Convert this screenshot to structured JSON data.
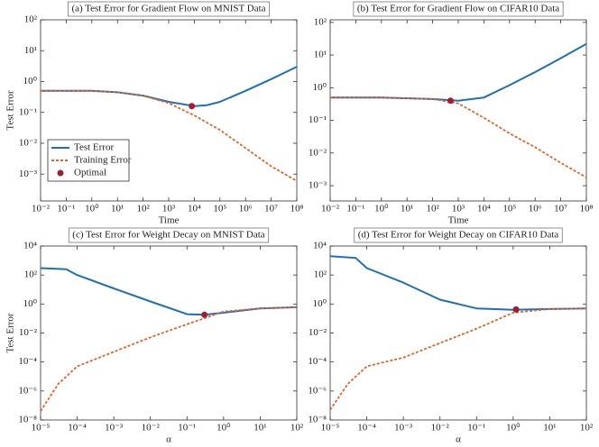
{
  "chart_data": [
    {
      "type": "line",
      "title": "(a) Test Error for Gradient Flow on MNIST Data",
      "xlabel": "Time",
      "ylabel": "Test Error",
      "log_x": true,
      "log_y": true,
      "legend": "lower left",
      "xlim": [
        0.01,
        100000000
      ],
      "ylim": [
        0.000135,
        100
      ],
      "xticks": [
        {
          "value": 0.01,
          "label": "10⁻²"
        },
        {
          "value": 0.1,
          "label": "10⁻¹"
        },
        {
          "value": 1,
          "label": "10⁰"
        },
        {
          "value": 10,
          "label": "10¹"
        },
        {
          "value": 100,
          "label": "10²"
        },
        {
          "value": 1000,
          "label": "10³"
        },
        {
          "value": 10000,
          "label": "10⁴"
        },
        {
          "value": 100000,
          "label": "10⁵"
        },
        {
          "value": 1000000,
          "label": "10⁶"
        },
        {
          "value": 10000000,
          "label": "10⁷"
        },
        {
          "value": 100000000,
          "label": "10⁸"
        }
      ],
      "yticks": [
        {
          "value": 0.001,
          "label": "10⁻³"
        },
        {
          "value": 0.01,
          "label": "10⁻²"
        },
        {
          "value": 0.1,
          "label": "10⁻¹"
        },
        {
          "value": 1,
          "label": "10⁰"
        },
        {
          "value": 10,
          "label": "10¹"
        },
        {
          "value": 100,
          "label": "10²"
        }
      ],
      "series": [
        {
          "name": "Test Error",
          "color": "#1f6fb4",
          "style": "solid",
          "x": [
            0.01,
            1,
            10,
            100,
            1000,
            10000,
            30000,
            100000,
            1000000,
            10000000,
            100000000
          ],
          "values": [
            0.5,
            0.5,
            0.45,
            0.35,
            0.22,
            0.16,
            0.17,
            0.22,
            0.5,
            1.2,
            3
          ]
        },
        {
          "name": "Training Error",
          "color": "#e0642a",
          "style": "dashed",
          "x": [
            0.01,
            1,
            10,
            100,
            1000,
            10000,
            100000,
            1000000,
            10000000,
            100000000
          ],
          "values": [
            0.5,
            0.5,
            0.45,
            0.35,
            0.2,
            0.08,
            0.027,
            0.007,
            0.0018,
            0.0006
          ]
        },
        {
          "name": "Optimal",
          "color": "#a11d33",
          "style": "marker",
          "x": [
            8000
          ],
          "values": [
            0.16
          ]
        }
      ]
    },
    {
      "type": "line",
      "title": "(b) Test Error for Gradient Flow on CIFAR10 Data",
      "xlabel": "Time",
      "log_x": true,
      "log_y": true,
      "xlim": [
        0.01,
        100000000
      ],
      "ylim": [
        0.00034,
        120
      ],
      "xticks": [
        {
          "value": 0.01,
          "label": "10⁻²"
        },
        {
          "value": 0.1,
          "label": "10⁻¹"
        },
        {
          "value": 1,
          "label": "10⁰"
        },
        {
          "value": 10,
          "label": "10¹"
        },
        {
          "value": 100,
          "label": "10²"
        },
        {
          "value": 1000,
          "label": "10³"
        },
        {
          "value": 10000,
          "label": "10⁴"
        },
        {
          "value": 100000,
          "label": "10⁵"
        },
        {
          "value": 1000000,
          "label": "10⁶"
        },
        {
          "value": 10000000,
          "label": "10⁷"
        },
        {
          "value": 100000000,
          "label": "10⁸"
        }
      ],
      "yticks": [
        {
          "value": 0.001,
          "label": "10⁻³"
        },
        {
          "value": 0.01,
          "label": "10⁻²"
        },
        {
          "value": 0.1,
          "label": "10⁻¹"
        },
        {
          "value": 1,
          "label": "10⁰"
        },
        {
          "value": 10,
          "label": "10¹"
        },
        {
          "value": 100,
          "label": "10²"
        }
      ],
      "series": [
        {
          "name": "Test Error",
          "color": "#1f6fb4",
          "style": "solid",
          "x": [
            0.01,
            1,
            100,
            1000,
            10000,
            100000,
            1000000,
            10000000,
            100000000
          ],
          "values": [
            0.5,
            0.5,
            0.45,
            0.4,
            0.5,
            1.2,
            3,
            8,
            22
          ]
        },
        {
          "name": "Training Error",
          "color": "#e0642a",
          "style": "dashed",
          "x": [
            0.01,
            1,
            100,
            1000,
            10000,
            100000,
            1000000,
            10000000,
            100000000
          ],
          "values": [
            0.5,
            0.5,
            0.45,
            0.33,
            0.12,
            0.04,
            0.015,
            0.005,
            0.0018
          ]
        },
        {
          "name": "Optimal",
          "color": "#a11d33",
          "style": "marker",
          "x": [
            500
          ],
          "values": [
            0.4
          ]
        }
      ]
    },
    {
      "type": "line",
      "title": "(c) Test Error for Weight Decay on MNIST Data",
      "xlabel": "α",
      "ylabel": "Test Error",
      "log_x": true,
      "log_y": true,
      "xlim": [
        1e-05,
        100
      ],
      "ylim": [
        1e-08,
        10000
      ],
      "xticks": [
        {
          "value": 1e-05,
          "label": "10⁻⁵"
        },
        {
          "value": 0.0001,
          "label": "10⁻⁴"
        },
        {
          "value": 0.001,
          "label": "10⁻³"
        },
        {
          "value": 0.01,
          "label": "10⁻²"
        },
        {
          "value": 0.1,
          "label": "10⁻¹"
        },
        {
          "value": 1,
          "label": "10⁰"
        },
        {
          "value": 10,
          "label": "10¹"
        },
        {
          "value": 100,
          "label": "10²"
        }
      ],
      "yticks": [
        {
          "value": 1e-08,
          "label": "10⁻⁸"
        },
        {
          "value": 1e-06,
          "label": "10⁻⁶"
        },
        {
          "value": 0.0001,
          "label": "10⁻⁴"
        },
        {
          "value": 0.01,
          "label": "10⁻²"
        },
        {
          "value": 1,
          "label": "10⁰"
        },
        {
          "value": 100,
          "label": "10²"
        },
        {
          "value": 10000,
          "label": "10⁴"
        }
      ],
      "series": [
        {
          "name": "Test Error",
          "color": "#1f6fb4",
          "style": "solid",
          "x": [
            1e-05,
            5e-05,
            0.0001,
            0.001,
            0.01,
            0.1,
            0.3,
            1,
            10,
            100
          ],
          "values": [
            300,
            250,
            100,
            12,
            1.5,
            0.2,
            0.18,
            0.25,
            0.5,
            0.6
          ]
        },
        {
          "name": "Training Error",
          "color": "#e0642a",
          "style": "dashed",
          "x": [
            1e-05,
            3e-05,
            0.0001,
            0.001,
            0.01,
            0.1,
            1,
            10,
            100
          ],
          "values": [
            4e-08,
            3e-06,
            5e-05,
            0.0005,
            0.005,
            0.04,
            0.3,
            0.5,
            0.6
          ]
        },
        {
          "name": "Optimal",
          "color": "#a11d33",
          "style": "marker",
          "x": [
            0.3
          ],
          "values": [
            0.18
          ]
        }
      ]
    },
    {
      "type": "line",
      "title": "(d) Test Error for Weight Decay on CIFAR10 Data",
      "xlabel": "α",
      "log_x": true,
      "log_y": true,
      "xlim": [
        1e-05,
        100
      ],
      "ylim": [
        1e-08,
        10000
      ],
      "xticks": [
        {
          "value": 1e-05,
          "label": "10⁻⁵"
        },
        {
          "value": 0.0001,
          "label": "10⁻⁴"
        },
        {
          "value": 0.001,
          "label": "10⁻³"
        },
        {
          "value": 0.01,
          "label": "10⁻²"
        },
        {
          "value": 0.1,
          "label": "10⁻¹"
        },
        {
          "value": 1,
          "label": "10⁰"
        },
        {
          "value": 10,
          "label": "10¹"
        },
        {
          "value": 100,
          "label": "10²"
        }
      ],
      "yticks": [
        {
          "value": 1e-08,
          "label": "10⁻⁸"
        },
        {
          "value": 1e-06,
          "label": "10⁻⁶"
        },
        {
          "value": 0.0001,
          "label": "10⁻⁴"
        },
        {
          "value": 0.01,
          "label": "10⁻²"
        },
        {
          "value": 1,
          "label": "10⁰"
        },
        {
          "value": 100,
          "label": "10²"
        },
        {
          "value": 10000,
          "label": "10⁴"
        }
      ],
      "series": [
        {
          "name": "Test Error",
          "color": "#1f6fb4",
          "style": "solid",
          "x": [
            1e-05,
            5e-05,
            0.0001,
            0.001,
            0.01,
            0.1,
            1,
            10,
            100
          ],
          "values": [
            2000,
            1500,
            300,
            30,
            2,
            0.5,
            0.4,
            0.45,
            0.5
          ]
        },
        {
          "name": "Training Error",
          "color": "#e0642a",
          "style": "dashed",
          "x": [
            1e-05,
            3e-05,
            0.0001,
            0.001,
            0.01,
            0.1,
            1,
            10,
            100
          ],
          "values": [
            5e-08,
            3e-06,
            5e-05,
            0.0002,
            0.002,
            0.02,
            0.25,
            0.45,
            0.5
          ]
        },
        {
          "name": "Optimal",
          "color": "#a11d33",
          "style": "marker",
          "x": [
            1.2
          ],
          "values": [
            0.42
          ]
        }
      ]
    }
  ]
}
